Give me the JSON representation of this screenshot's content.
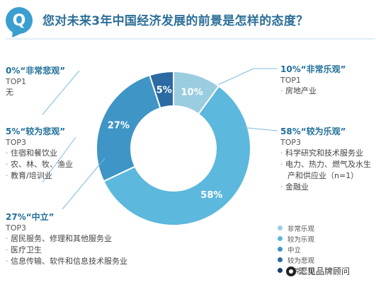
{
  "header": {
    "badge": "Q",
    "question": "您对未来3年中国经济发展的前景是怎样的态度？"
  },
  "chart_data": {
    "type": "pie",
    "donut": true,
    "categories": [
      "非常乐观",
      "较为乐观",
      "中立",
      "较为悲观",
      "非常悲观"
    ],
    "values": [
      10,
      58,
      27,
      5,
      0
    ],
    "value_labels": [
      "10%",
      "58%",
      "27%",
      "5%",
      ""
    ],
    "colors": [
      "#9bcde0",
      "#5cb8dc",
      "#3e95c6",
      "#2b6aa2",
      "#1a3c6e"
    ],
    "legend_position": "bottom-right"
  },
  "annotations": {
    "very_pessimistic": {
      "head": "0%“非常悲观”",
      "top": "TOP1",
      "items": [],
      "plain": "无"
    },
    "somewhat_pessimistic": {
      "head": "5%“较为悲观”",
      "top": "TOP3",
      "items": [
        "住宿和餐饮业",
        "农、林、牧、渔业",
        "教育/培训业"
      ]
    },
    "neutral": {
      "head": "27%“中立”",
      "top": "TOP3",
      "items": [
        "居民服务、修理和其他服务业",
        "医疗卫生",
        "信息传输、软件和信息技术服务业"
      ]
    },
    "very_optimistic": {
      "head": "10%“非常乐观”",
      "top": "TOP1",
      "items": [
        "房地产业"
      ]
    },
    "somewhat_optimistic": {
      "head": "58%“较为乐观”",
      "top": "TOP3",
      "items": [
        "科学研究和技术服务业",
        "电力、热力、燃气及水生",
        "产和供应业（n=1）",
        "金融业"
      ]
    }
  },
  "watermark": "汇见品牌顾问"
}
